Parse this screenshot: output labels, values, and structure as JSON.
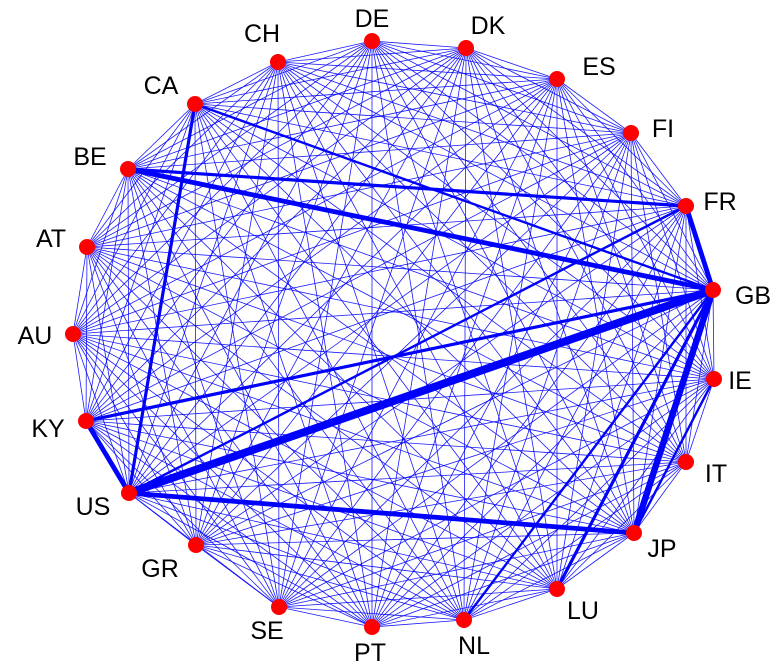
{
  "colors": {
    "edge": "#0000ff",
    "node": "#ff0000",
    "label": "#000000"
  },
  "nodes": [
    {
      "id": "DE",
      "label": "DE"
    },
    {
      "id": "DK",
      "label": "DK"
    },
    {
      "id": "ES",
      "label": "ES"
    },
    {
      "id": "FI",
      "label": "FI"
    },
    {
      "id": "FR",
      "label": "FR"
    },
    {
      "id": "GB",
      "label": "GB"
    },
    {
      "id": "IE",
      "label": "IE"
    },
    {
      "id": "IT",
      "label": "IT"
    },
    {
      "id": "JP",
      "label": "JP"
    },
    {
      "id": "LU",
      "label": "LU"
    },
    {
      "id": "NL",
      "label": "NL"
    },
    {
      "id": "PT",
      "label": "PT"
    },
    {
      "id": "SE",
      "label": "SE"
    },
    {
      "id": "GR",
      "label": "GR"
    },
    {
      "id": "US",
      "label": "US"
    },
    {
      "id": "KY",
      "label": "KY"
    },
    {
      "id": "AU",
      "label": "AU"
    },
    {
      "id": "AT",
      "label": "AT"
    },
    {
      "id": "BE",
      "label": "BE"
    },
    {
      "id": "CA",
      "label": "CA"
    },
    {
      "id": "CH",
      "label": "CH"
    }
  ],
  "strong_links": [
    {
      "source": "US",
      "target": "GB",
      "weight": 5
    },
    {
      "source": "GB",
      "target": "JP",
      "weight": 4
    },
    {
      "source": "US",
      "target": "JP",
      "weight": 3
    },
    {
      "source": "BE",
      "target": "GB",
      "weight": 3
    },
    {
      "source": "US",
      "target": "KY",
      "weight": 3
    },
    {
      "source": "FR",
      "target": "GB",
      "weight": 3
    },
    {
      "source": "US",
      "target": "CA",
      "weight": 2
    },
    {
      "source": "KY",
      "target": "GB",
      "weight": 2
    },
    {
      "source": "BE",
      "target": "FR",
      "weight": 2
    },
    {
      "source": "LU",
      "target": "GB",
      "weight": 2
    },
    {
      "source": "CA",
      "target": "GB",
      "weight": 1.5
    },
    {
      "source": "IE",
      "target": "JP",
      "weight": 1.5
    },
    {
      "source": "NL",
      "target": "GB",
      "weight": 1.5
    },
    {
      "source": "US",
      "target": "FR",
      "weight": 1.5
    }
  ]
}
